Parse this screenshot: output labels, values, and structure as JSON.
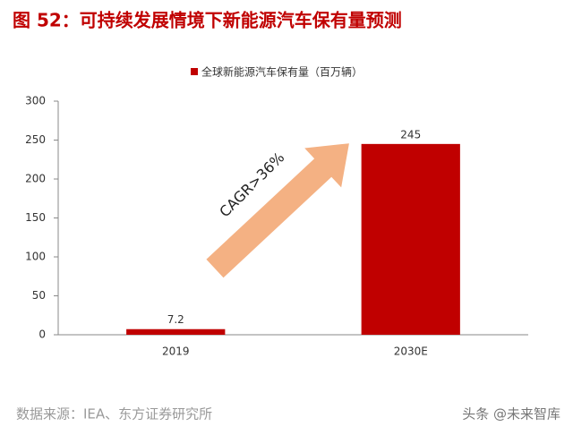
{
  "chart_data": {
    "type": "bar",
    "title": "图 52：可持续发展情境下新能源汽车保有量预测",
    "series": [
      {
        "name": "全球新能源汽车保有量（百万辆）",
        "color": "#c00000",
        "values": [
          7.2,
          245
        ]
      }
    ],
    "categories": [
      "2019",
      "2030E"
    ],
    "ylim": [
      0,
      300
    ],
    "yticks": [
      0,
      50,
      100,
      150,
      200,
      250,
      300
    ],
    "annotation": "CAGR>36%",
    "source": "数据来源：IEA、东方证券研究所",
    "watermark": "头条 @未来智库"
  }
}
